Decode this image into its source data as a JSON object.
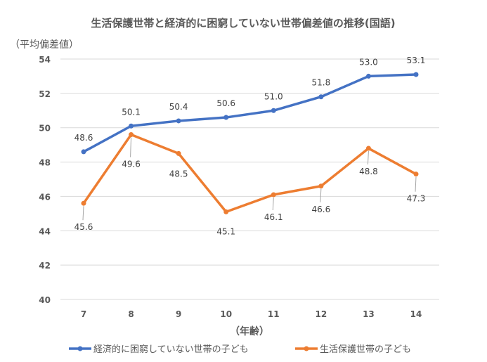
{
  "chart_data": {
    "type": "line",
    "title": "生活保護世帯と経済的に困窮していない世帯偏差値の推移(国語)",
    "ylabel": "（平均偏差値）",
    "xlabel": "（年齢）",
    "categories": [
      "7",
      "8",
      "9",
      "10",
      "11",
      "12",
      "13",
      "14"
    ],
    "ylim": [
      40,
      54
    ],
    "yticks": [
      40,
      42,
      44,
      46,
      48,
      50,
      52,
      54
    ],
    "grid": true,
    "legend": "bottom",
    "series": [
      {
        "name": "経済的に困窮していない世帯の子ども",
        "color": "#4472C4",
        "values": [
          48.6,
          50.1,
          50.4,
          50.6,
          51.0,
          51.8,
          53.0,
          53.1
        ]
      },
      {
        "name": "生活保護世帯の子ども",
        "color": "#ED7D31",
        "values": [
          45.6,
          49.6,
          48.5,
          45.1,
          46.1,
          46.6,
          48.8,
          47.3
        ]
      }
    ]
  }
}
